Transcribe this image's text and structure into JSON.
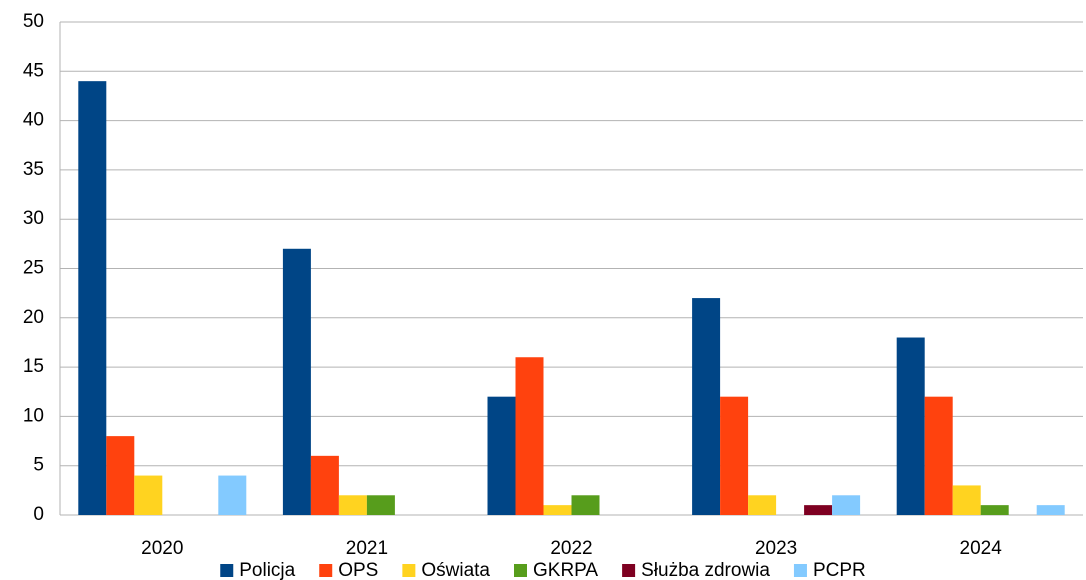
{
  "chart_data": {
    "type": "bar",
    "categories": [
      "2020",
      "2021",
      "2022",
      "2023",
      "2024"
    ],
    "series": [
      {
        "name": "Policja",
        "color": "#004586",
        "values": [
          44,
          27,
          12,
          22,
          18
        ]
      },
      {
        "name": "OPS",
        "color": "#ff420e",
        "values": [
          8,
          6,
          16,
          12,
          12
        ]
      },
      {
        "name": "Oświata",
        "color": "#ffd320",
        "values": [
          4,
          2,
          1,
          2,
          3
        ]
      },
      {
        "name": "GKRPA",
        "color": "#579d1c",
        "values": [
          0,
          2,
          2,
          0,
          1
        ]
      },
      {
        "name": "Służba zdrowia",
        "color": "#7e0021",
        "values": [
          0,
          0,
          0,
          1,
          0
        ]
      },
      {
        "name": "PCPR",
        "color": "#83caff",
        "values": [
          4,
          0,
          0,
          2,
          1
        ]
      }
    ],
    "ylim": [
      0,
      50
    ],
    "yticks": [
      0,
      5,
      10,
      15,
      20,
      25,
      30,
      35,
      40,
      45,
      50
    ],
    "grid": true,
    "legend": "bottom"
  }
}
